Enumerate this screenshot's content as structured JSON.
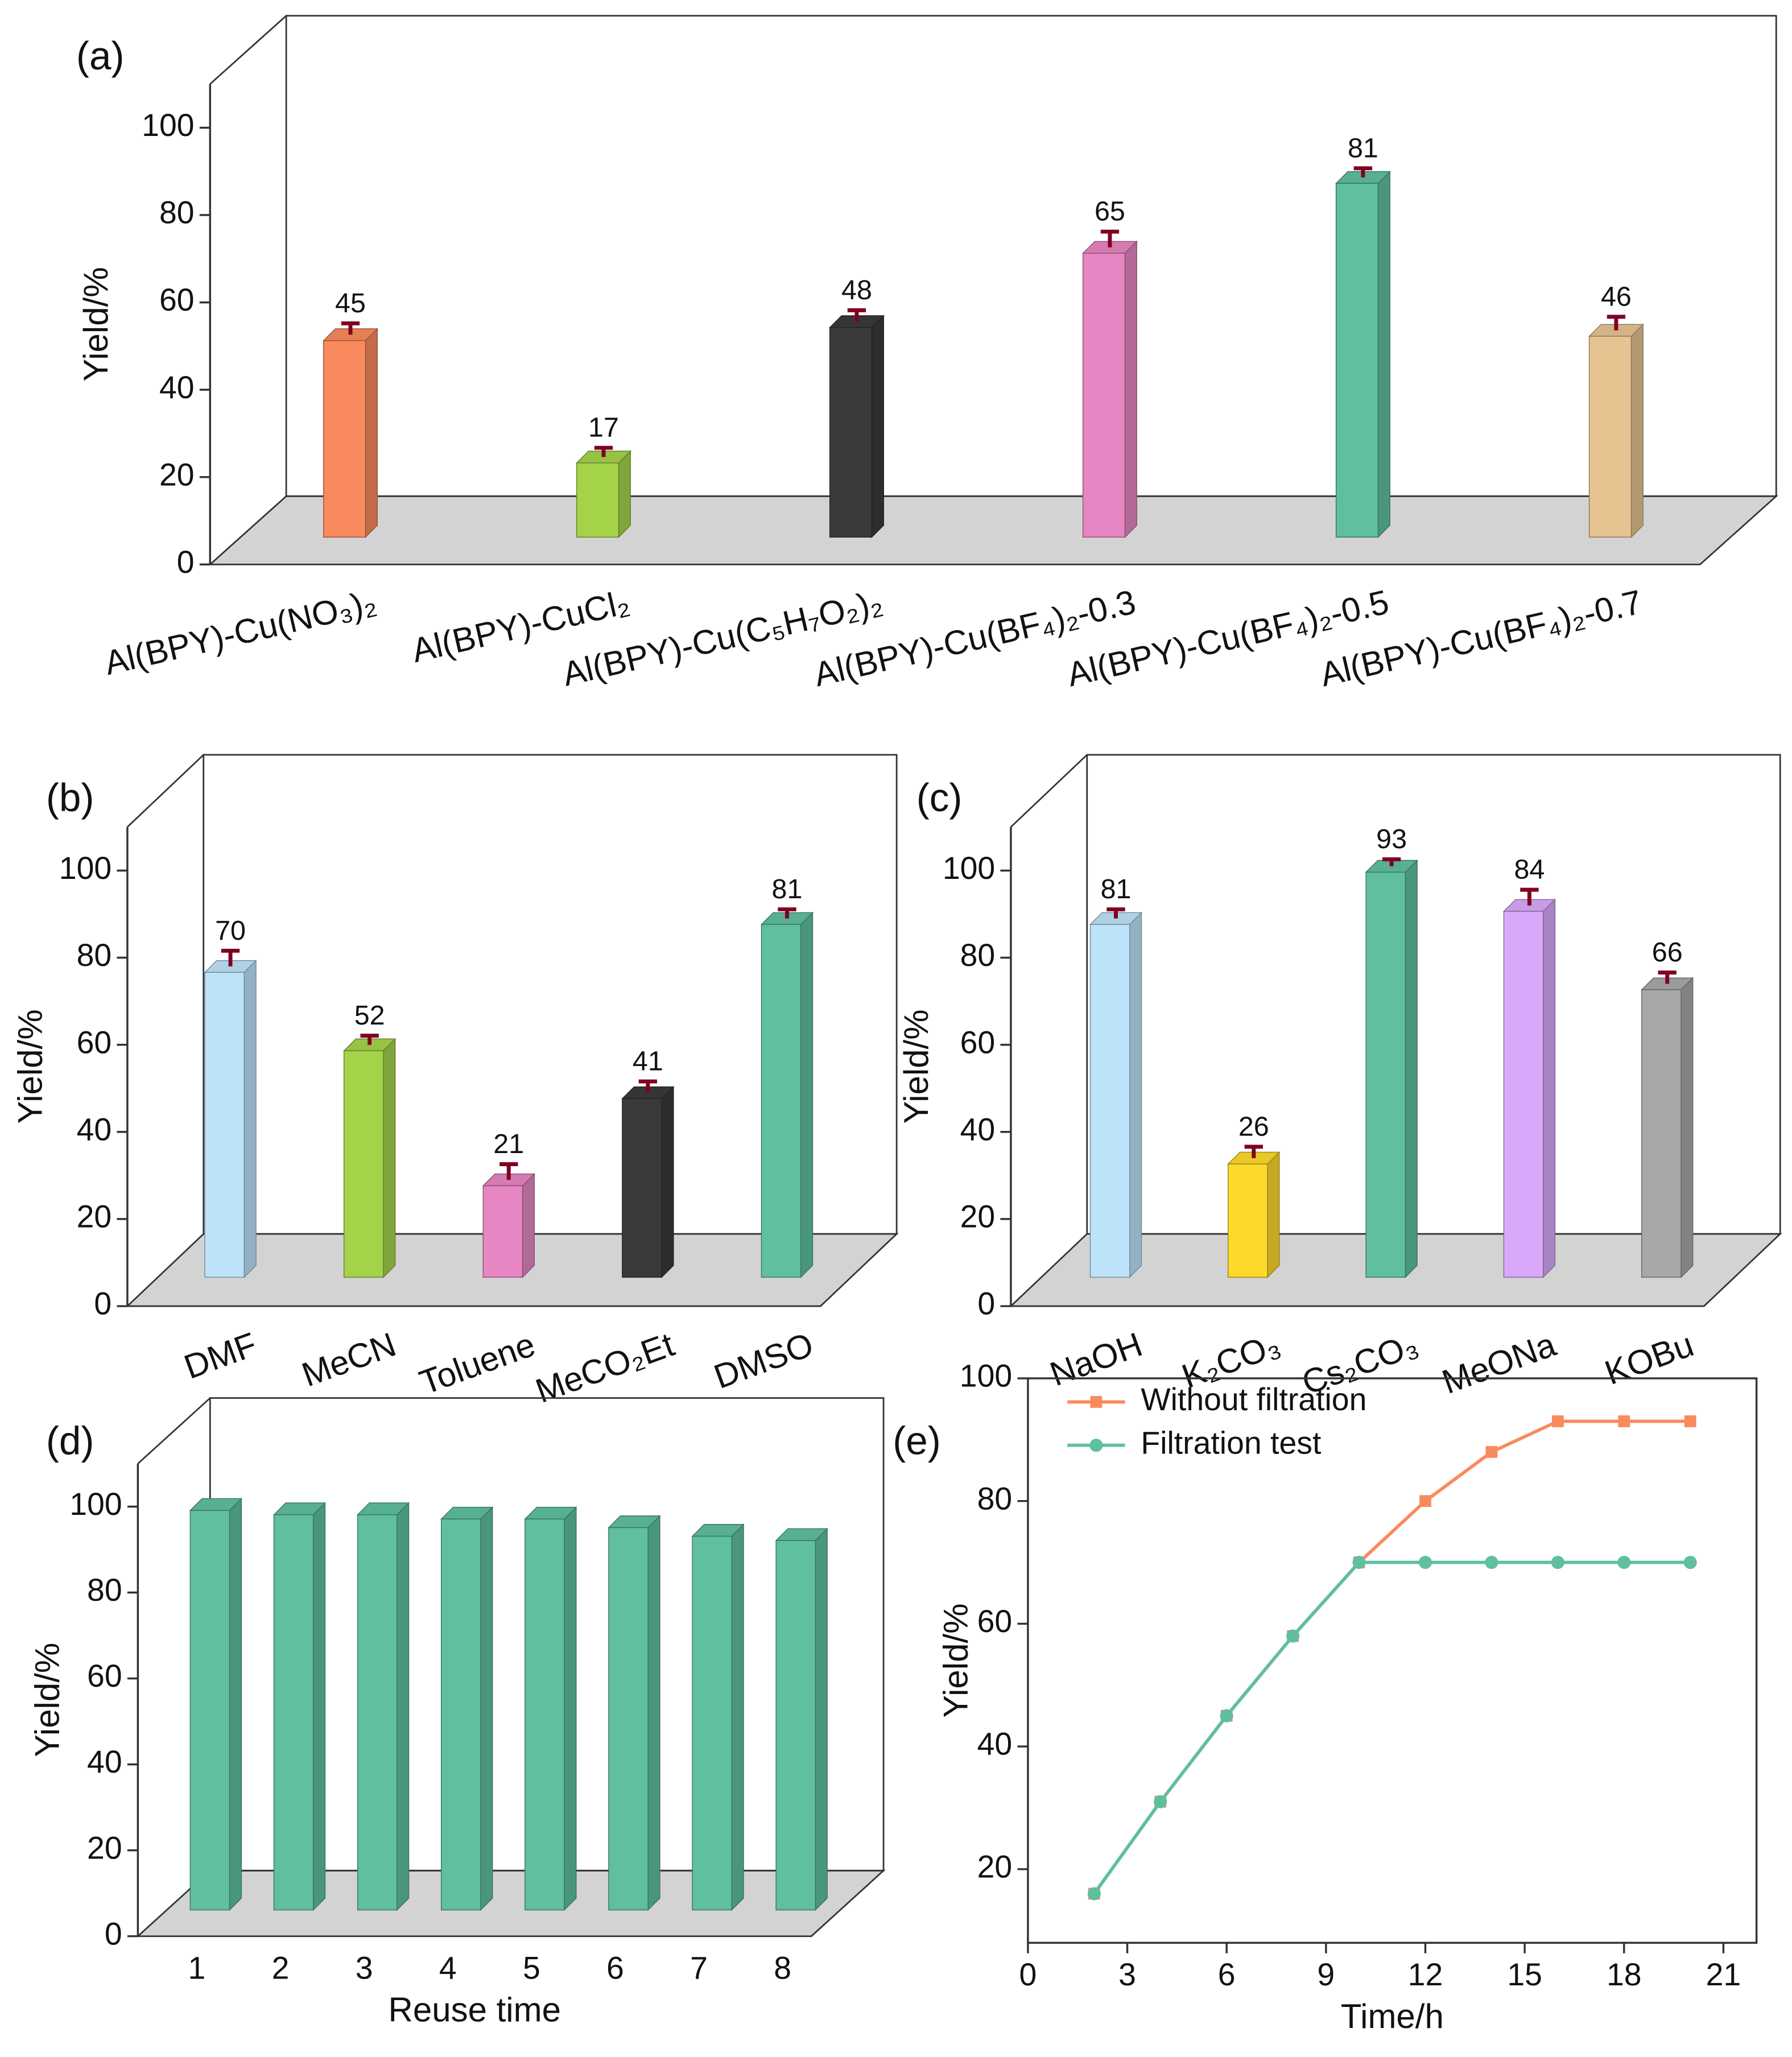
{
  "chart_data": [
    {
      "type": "bar3d",
      "label": "(a)",
      "y_label": "Yield/%",
      "categories": [
        "Al(BPY)-Cu(NO₃)₂",
        "Al(BPY)-CuCl₂",
        "Al(BPY)-Cu(C₅H₇O₂)₂",
        "Al(BPY)-Cu(BF₄)₂-0.3",
        "Al(BPY)-Cu(BF₄)₂-0.5",
        "Al(BPY)-Cu(BF₄)₂-0.7"
      ],
      "values": [
        45,
        17,
        48,
        65,
        81,
        46
      ],
      "errors": [
        2,
        1.5,
        2,
        3,
        1.5,
        2.5
      ],
      "colors": [
        "#f98a5e",
        "#a4d34a",
        "#3a3a3a",
        "#e686c2",
        "#5fbfa0",
        "#e6c492"
      ],
      "error_color": "#800020",
      "floor_color": "#d3d3d3",
      "ylim": [
        0,
        110
      ],
      "yticks": [
        0,
        20,
        40,
        60,
        80,
        100
      ]
    },
    {
      "type": "bar3d",
      "label": "(b)",
      "y_label": "Yield/%",
      "categories": [
        "DMF",
        "MeCN",
        "Toluene",
        "MeCO₂Et",
        "DMSO"
      ],
      "values": [
        70,
        52,
        21,
        41,
        81
      ],
      "errors": [
        3,
        1.5,
        3,
        2,
        1.5
      ],
      "colors": [
        "#bde3fa",
        "#a4d34a",
        "#e686c2",
        "#3a3a3a",
        "#5fbfa0"
      ],
      "error_color": "#800020",
      "floor_color": "#d3d3d3",
      "ylim": [
        0,
        110
      ],
      "yticks": [
        0,
        20,
        40,
        60,
        80,
        100
      ]
    },
    {
      "type": "bar3d",
      "label": "(c)",
      "y_label": "Yield/%",
      "categories": [
        "NaOH",
        "K₂CO₃",
        "Cs₂CO₃",
        "MeONa",
        "KOBu"
      ],
      "values": [
        81,
        26,
        93,
        84,
        66
      ],
      "errors": [
        1.5,
        2,
        1,
        3,
        2
      ],
      "colors": [
        "#bde3fa",
        "#fdd92c",
        "#5fbfa0",
        "#d8a9fb",
        "#a8a8a8"
      ],
      "error_color": "#800020",
      "floor_color": "#d3d3d3",
      "ylim": [
        0,
        110
      ],
      "yticks": [
        0,
        20,
        40,
        60,
        80,
        100
      ]
    },
    {
      "type": "bar3d",
      "label": "(d)",
      "y_label": "Yield/%",
      "x_label": "Reuse time",
      "categories": [
        "1",
        "2",
        "3",
        "4",
        "5",
        "6",
        "7",
        "8"
      ],
      "values": [
        93,
        92,
        92,
        91,
        91,
        89,
        87,
        86
      ],
      "colors": [
        "#5fbfa0",
        "#5fbfa0",
        "#5fbfa0",
        "#5fbfa0",
        "#5fbfa0",
        "#5fbfa0",
        "#5fbfa0",
        "#5fbfa0"
      ],
      "floor_color": "#d3d3d3",
      "ylim": [
        0,
        110
      ],
      "yticks": [
        0,
        20,
        40,
        60,
        80,
        100
      ]
    },
    {
      "type": "line",
      "label": "(e)",
      "y_label": "Yield/%",
      "x_label": "Time/h",
      "x": [
        2,
        4,
        6,
        8,
        10,
        12,
        14,
        16,
        18,
        20
      ],
      "series": [
        {
          "name": "Without filtration",
          "color": "#f98a5e",
          "marker": "square",
          "values": [
            16,
            31,
            45,
            58,
            70,
            80,
            88,
            93,
            93,
            93
          ]
        },
        {
          "name": "Filtration test",
          "color": "#5fbfa0",
          "marker": "circle",
          "values": [
            16,
            31,
            45,
            58,
            70,
            70,
            70,
            70,
            70,
            70
          ]
        }
      ],
      "legend": "upper left",
      "xlim": [
        0,
        22
      ],
      "xticks": [
        0,
        3,
        6,
        9,
        12,
        15,
        18,
        21
      ],
      "ylim": [
        8,
        100
      ],
      "yticks": [
        20,
        40,
        60,
        80,
        100
      ]
    }
  ]
}
